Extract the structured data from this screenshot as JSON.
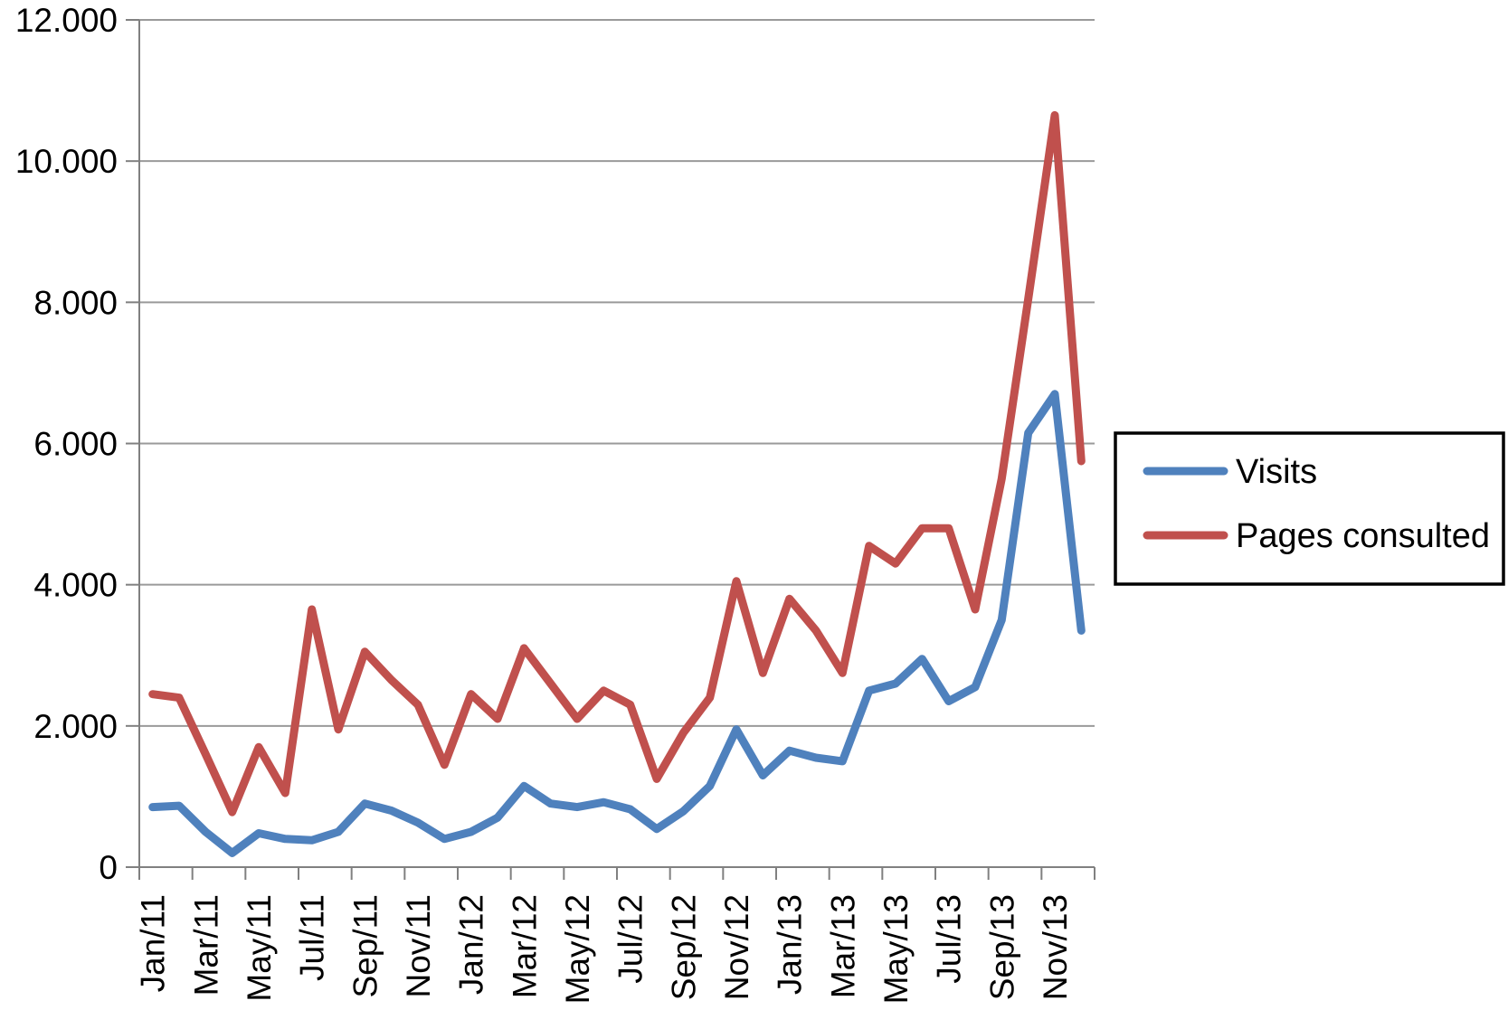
{
  "chart_data": {
    "type": "line",
    "title": "",
    "xlabel": "",
    "ylabel": "",
    "x": [
      "Jan/11",
      "Feb/11",
      "Mar/11",
      "Apr/11",
      "May/11",
      "Jun/11",
      "Jul/11",
      "Aug/11",
      "Sep/11",
      "Oct/11",
      "Nov/11",
      "Dec/11",
      "Jan/12",
      "Feb/12",
      "Mar/12",
      "Apr/12",
      "May/12",
      "Jun/12",
      "Jul/12",
      "Aug/12",
      "Sep/12",
      "Oct/12",
      "Nov/12",
      "Dec/12",
      "Jan/13",
      "Feb/13",
      "Mar/13",
      "Apr/13",
      "May/13",
      "Jun/13",
      "Jul/13",
      "Aug/13",
      "Sep/13",
      "Oct/13",
      "Nov/13",
      "Dec/13"
    ],
    "x_tick_labels": [
      "Jan/11",
      "Mar/11",
      "May/11",
      "Jul/11",
      "Sep/11",
      "Nov/11",
      "Jan/12",
      "Mar/12",
      "May/12",
      "Jul/12",
      "Sep/12",
      "Nov/12",
      "Jan/13",
      "Mar/13",
      "May/13",
      "Jul/13",
      "Sep/13",
      "Nov/13"
    ],
    "y_tick_labels": [
      "0",
      "2.000",
      "4.000",
      "6.000",
      "8.000",
      "10.000",
      "12.000"
    ],
    "ylim": [
      0,
      12000
    ],
    "y_tick_step": 2000,
    "grid": "horizontal",
    "legend_position": "right",
    "series": [
      {
        "name": "Visits",
        "color": "#4F81BD",
        "values": [
          850,
          870,
          500,
          200,
          480,
          400,
          380,
          500,
          900,
          800,
          630,
          400,
          500,
          700,
          1150,
          900,
          850,
          920,
          820,
          540,
          790,
          1150,
          1950,
          1300,
          1650,
          1550,
          1500,
          2500,
          2600,
          2950,
          2350,
          2550,
          3500,
          6150,
          6700,
          3350
        ]
      },
      {
        "name": "Pages consulted",
        "color": "#C0504D",
        "values": [
          2450,
          2400,
          1600,
          780,
          1700,
          1050,
          3650,
          1950,
          3050,
          2650,
          2300,
          1450,
          2450,
          2100,
          3100,
          2600,
          2100,
          2500,
          2300,
          1250,
          1900,
          2400,
          4050,
          2750,
          3800,
          3350,
          2750,
          4550,
          4300,
          4800,
          4800,
          3650,
          5500,
          8050,
          10650,
          5750
        ]
      }
    ],
    "style": {
      "background": "#ffffff",
      "grid_color": "#9a9a9a",
      "axis_color": "#808080",
      "text_color": "#000000",
      "legend_border_color": "#000000",
      "legend_background": "#ffffff"
    }
  }
}
